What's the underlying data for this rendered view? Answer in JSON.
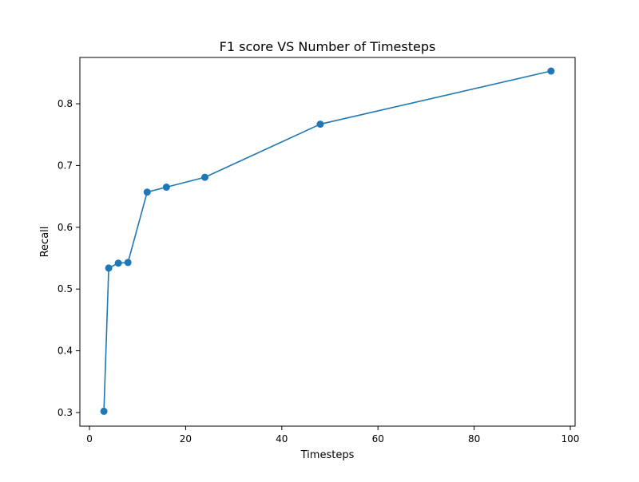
{
  "chart_data": {
    "type": "line",
    "title": "F1 score VS Number of Timesteps",
    "xlabel": "Timesteps",
    "ylabel": "Recall",
    "xlim": [
      -2,
      101
    ],
    "ylim": [
      0.278,
      0.875
    ],
    "xticks": [
      0,
      20,
      40,
      60,
      80,
      100
    ],
    "yticks": [
      0.3,
      0.4,
      0.5,
      0.6,
      0.7,
      0.8
    ],
    "grid": false,
    "series": [
      {
        "x": [
          3,
          4,
          6,
          8,
          12,
          16,
          24,
          48,
          96
        ],
        "y": [
          0.302,
          0.534,
          0.542,
          0.543,
          0.657,
          0.665,
          0.681,
          0.767,
          0.853
        ],
        "color": "#1f77b4",
        "marker": "circle"
      }
    ]
  }
}
